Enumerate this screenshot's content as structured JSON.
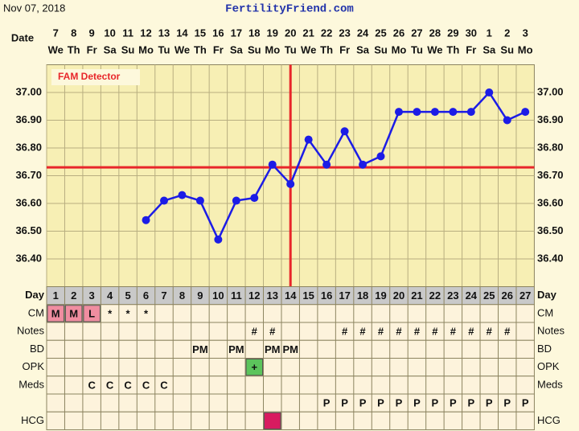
{
  "header": {
    "date": "Nov 07, 2018",
    "site": "FertilityFriend.com"
  },
  "chart_data": {
    "type": "line",
    "date_label": "Date",
    "categories": [
      7,
      8,
      9,
      10,
      11,
      12,
      13,
      14,
      15,
      16,
      17,
      18,
      19,
      20,
      21,
      22,
      23,
      24,
      25,
      26,
      27,
      28,
      29,
      30,
      1,
      2,
      3
    ],
    "weekdays": [
      "We",
      "Th",
      "Fr",
      "Sa",
      "Su",
      "Mo",
      "Tu",
      "We",
      "Th",
      "Fr",
      "Sa",
      "Su",
      "Mo",
      "Tu",
      "We",
      "Th",
      "Fr",
      "Sa",
      "Su",
      "Mo",
      "Tu",
      "We",
      "Th",
      "Fr",
      "Sa",
      "Su",
      "Mo"
    ],
    "series": [
      {
        "color": "#1c1ce6",
        "values": [
          null,
          null,
          null,
          null,
          null,
          36.54,
          36.61,
          36.63,
          36.61,
          36.47,
          36.61,
          36.62,
          36.74,
          36.67,
          36.83,
          36.74,
          36.86,
          36.74,
          36.77,
          36.93,
          36.93,
          36.93,
          36.93,
          36.93,
          37.0,
          36.9,
          36.93
        ]
      }
    ],
    "ylim": [
      36.3,
      37.1
    ],
    "yticks": [
      {
        "value": 36.4,
        "label": "36.40"
      },
      {
        "value": 36.5,
        "label": "36.50"
      },
      {
        "value": 36.6,
        "label": "36.60"
      },
      {
        "value": 36.7,
        "label": "36.70"
      },
      {
        "value": 36.8,
        "label": "36.80"
      },
      {
        "value": 36.9,
        "label": "36.90"
      },
      {
        "value": 37.0,
        "label": "37.00"
      }
    ],
    "grid": true,
    "coverline": 36.73,
    "ovulation_day": 14,
    "line_color": "#e8262a",
    "annotation": "FAM Detector"
  },
  "table": {
    "days_label": "Day",
    "days": [
      1,
      2,
      3,
      4,
      5,
      6,
      7,
      8,
      9,
      10,
      11,
      12,
      13,
      14,
      15,
      16,
      17,
      18,
      19,
      20,
      21,
      22,
      23,
      24,
      25,
      26,
      27
    ],
    "rows": [
      {
        "label": "CM",
        "cells": [
          "M",
          "M",
          "L",
          "*",
          "*",
          "*",
          null,
          null,
          null,
          null,
          null,
          null,
          null,
          null,
          null,
          null,
          null,
          null,
          null,
          null,
          null,
          null,
          null,
          null,
          null,
          null,
          null
        ],
        "colors": [
          "#f08da0",
          "#f08da0",
          "#f08da0",
          null,
          null,
          null,
          null,
          null,
          null,
          null,
          null,
          null,
          null,
          null,
          null,
          null,
          null,
          null,
          null,
          null,
          null,
          null,
          null,
          null,
          null,
          null,
          null
        ]
      },
      {
        "label": "Notes",
        "cells": [
          null,
          null,
          null,
          null,
          null,
          null,
          null,
          null,
          null,
          null,
          null,
          "#",
          "#",
          null,
          null,
          null,
          "#",
          "#",
          "#",
          "#",
          "#",
          "#",
          "#",
          "#",
          "#",
          "#",
          null
        ]
      },
      {
        "label": "BD",
        "cells": [
          null,
          null,
          null,
          null,
          null,
          null,
          null,
          null,
          "PM",
          null,
          "PM",
          null,
          "PM",
          "PM",
          null,
          null,
          null,
          null,
          null,
          null,
          null,
          null,
          null,
          null,
          null,
          null,
          null
        ]
      },
      {
        "label": "OPK",
        "cells": [
          null,
          null,
          null,
          null,
          null,
          null,
          null,
          null,
          null,
          null,
          null,
          "+",
          null,
          null,
          null,
          null,
          null,
          null,
          null,
          null,
          null,
          null,
          null,
          null,
          null,
          null,
          null
        ],
        "colors": [
          null,
          null,
          null,
          null,
          null,
          null,
          null,
          null,
          null,
          null,
          null,
          "#5cc45c",
          null,
          null,
          null,
          null,
          null,
          null,
          null,
          null,
          null,
          null,
          null,
          null,
          null,
          null,
          null
        ]
      },
      {
        "label": "Meds",
        "cells": [
          null,
          null,
          "C",
          "C",
          "C",
          "C",
          "C",
          null,
          null,
          null,
          null,
          null,
          null,
          null,
          null,
          null,
          null,
          null,
          null,
          null,
          null,
          null,
          null,
          null,
          null,
          null,
          null
        ]
      },
      {
        "cells": [
          null,
          null,
          null,
          null,
          null,
          null,
          null,
          null,
          null,
          null,
          null,
          null,
          null,
          null,
          null,
          "P",
          "P",
          "P",
          "P",
          "P",
          "P",
          "P",
          "P",
          "P",
          "P",
          "P",
          "P"
        ]
      },
      {
        "label": "HCG",
        "cells": [
          null,
          null,
          null,
          null,
          null,
          null,
          null,
          null,
          null,
          null,
          null,
          null,
          null,
          null,
          null,
          null,
          null,
          null,
          null,
          null,
          null,
          null,
          null,
          null,
          null,
          null,
          null
        ],
        "colors": [
          null,
          null,
          null,
          null,
          null,
          null,
          null,
          null,
          null,
          null,
          null,
          null,
          "#d81b60",
          null,
          null,
          null,
          null,
          null,
          null,
          null,
          null,
          null,
          null,
          null,
          null,
          null,
          null
        ]
      }
    ]
  }
}
